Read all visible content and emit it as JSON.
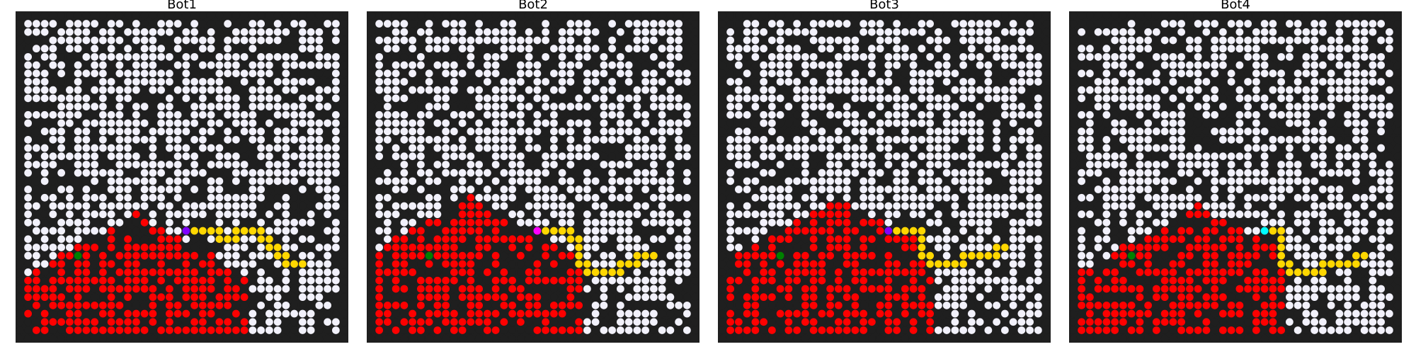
{
  "colors": {
    "background": "#1f1f1f",
    "open": "#f2f1fb",
    "blocked": "#1f1f1f",
    "fire": "#ff0000",
    "path": "#ffd700",
    "button": "#008000"
  },
  "chart_data": [
    {
      "type": "grid",
      "title": "Bot1",
      "size": 40,
      "seed": 11,
      "fire_apex": [
        24,
        14
      ],
      "fire_cols": [
        1,
        27
      ],
      "button": [
        29,
        7
      ],
      "bot": {
        "cell": [
          26,
          20
        ],
        "color": "#8000ff"
      },
      "path": [
        [
          26,
          21
        ],
        [
          26,
          22
        ],
        [
          26,
          23
        ],
        [
          26,
          24
        ],
        [
          27,
          24
        ],
        [
          27,
          25
        ],
        [
          27,
          26
        ],
        [
          26,
          26
        ],
        [
          26,
          27
        ],
        [
          26,
          28
        ],
        [
          26,
          29
        ],
        [
          27,
          29
        ],
        [
          27,
          30
        ],
        [
          28,
          30
        ],
        [
          28,
          31
        ],
        [
          29,
          31
        ],
        [
          29,
          32
        ],
        [
          30,
          32
        ],
        [
          30,
          33
        ],
        [
          30,
          34
        ]
      ]
    },
    {
      "type": "grid",
      "title": "Bot2",
      "size": 40,
      "seed": 23,
      "fire_apex": [
        22,
        12
      ],
      "fire_cols": [
        1,
        25
      ],
      "button": [
        29,
        7
      ],
      "bot": {
        "cell": [
          26,
          20
        ],
        "color": "#ff00ff"
      },
      "path": [
        [
          26,
          21
        ],
        [
          26,
          22
        ],
        [
          26,
          23
        ],
        [
          26,
          24
        ],
        [
          27,
          24
        ],
        [
          27,
          25
        ],
        [
          28,
          25
        ],
        [
          29,
          25
        ],
        [
          30,
          25
        ],
        [
          30,
          26
        ],
        [
          31,
          26
        ],
        [
          31,
          27
        ],
        [
          31,
          28
        ],
        [
          31,
          29
        ],
        [
          31,
          30
        ],
        [
          30,
          30
        ],
        [
          30,
          31
        ],
        [
          30,
          32
        ],
        [
          29,
          32
        ],
        [
          29,
          33
        ],
        [
          29,
          34
        ]
      ]
    },
    {
      "type": "grid",
      "title": "Bot3",
      "size": 40,
      "seed": 37,
      "fire_apex": [
        22,
        14
      ],
      "fire_cols": [
        1,
        25
      ],
      "button": [
        29,
        7
      ],
      "bot": {
        "cell": [
          26,
          20
        ],
        "color": "#8000ff"
      },
      "path": [
        [
          26,
          21
        ],
        [
          26,
          22
        ],
        [
          26,
          23
        ],
        [
          26,
          24
        ],
        [
          27,
          24
        ],
        [
          28,
          24
        ],
        [
          29,
          24
        ],
        [
          29,
          25
        ],
        [
          30,
          25
        ],
        [
          30,
          26
        ],
        [
          30,
          27
        ],
        [
          30,
          28
        ],
        [
          30,
          29
        ],
        [
          29,
          29
        ],
        [
          29,
          30
        ],
        [
          29,
          31
        ],
        [
          29,
          32
        ],
        [
          29,
          33
        ],
        [
          28,
          33
        ],
        [
          28,
          34
        ]
      ]
    },
    {
      "type": "grid",
      "title": "Bot4",
      "size": 40,
      "seed": 53,
      "fire_apex": [
        23,
        15
      ],
      "fire_cols": [
        1,
        25
      ],
      "button": [
        29,
        7
      ],
      "bot": {
        "cell": [
          26,
          23
        ],
        "color": "#00ffff"
      },
      "path": [
        [
          26,
          24
        ],
        [
          26,
          25
        ],
        [
          27,
          25
        ],
        [
          28,
          25
        ],
        [
          29,
          25
        ],
        [
          30,
          25
        ],
        [
          30,
          26
        ],
        [
          31,
          26
        ],
        [
          31,
          27
        ],
        [
          31,
          28
        ],
        [
          31,
          29
        ],
        [
          31,
          30
        ],
        [
          30,
          30
        ],
        [
          30,
          31
        ],
        [
          30,
          32
        ],
        [
          30,
          33
        ],
        [
          30,
          34
        ],
        [
          29,
          34
        ],
        [
          29,
          35
        ]
      ]
    }
  ]
}
